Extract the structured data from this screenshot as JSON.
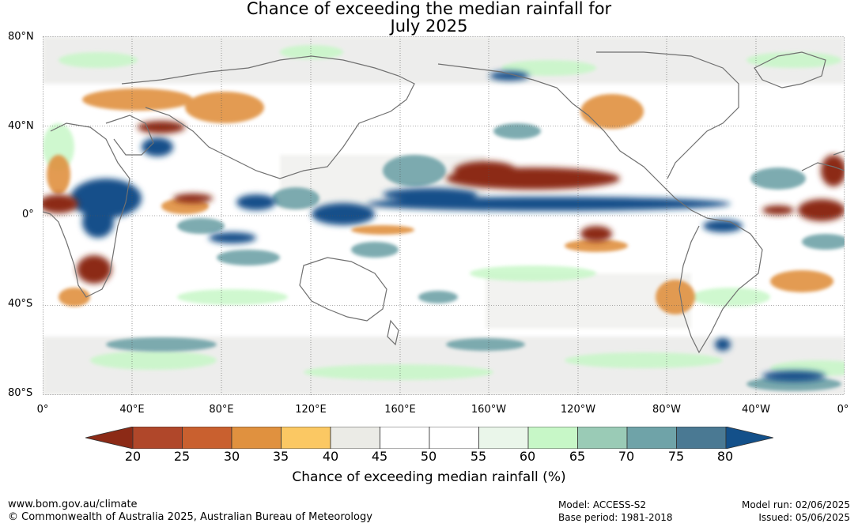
{
  "title": {
    "line1": "Chance of exceeding the median rainfall for",
    "line2": "July 2025"
  },
  "latitude_labels": [
    "80°N",
    "40°N",
    "0°",
    "40°S",
    "80°S"
  ],
  "longitude_labels": [
    "0°",
    "40°E",
    "80°E",
    "120°E",
    "160°E",
    "160°W",
    "120°W",
    "80°W",
    "40°W",
    "0°"
  ],
  "colorbar": {
    "ticks": [
      "20",
      "25",
      "30",
      "35",
      "40",
      "45",
      "50",
      "55",
      "60",
      "65",
      "70",
      "75",
      "80"
    ],
    "colors": {
      "below20": "#8c2a16",
      "bins": [
        "#b0472a",
        "#c9602f",
        "#e0913f",
        "#fbc863",
        "#ebebe6",
        "#ffffff",
        "#ffffff",
        "#eaf6ea",
        "#c7f7c7",
        "#9acbb6",
        "#6fa3a8",
        "#4a7993"
      ],
      "above80": "#13508a"
    },
    "label": "Chance of exceeding median rainfall (%)"
  },
  "footer": {
    "url": "www.bom.gov.au/climate",
    "copyright": "© Commonwealth of Australia 2025, Australian Bureau of Meteorology",
    "model": "Model: ACCESS-S2",
    "base_period": "Base period: 1981-2018",
    "model_run": "Model run: 02/06/2025",
    "issued": "Issued: 05/06/2025"
  }
}
